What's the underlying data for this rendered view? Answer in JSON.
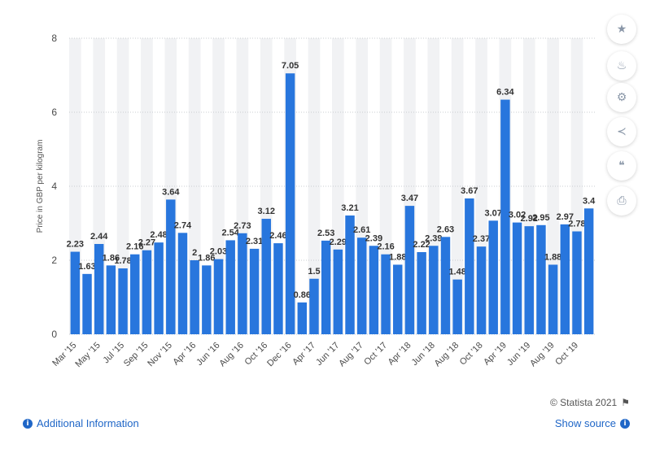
{
  "chart_data": {
    "type": "bar",
    "ylabel": "Price in GBP per kilogram",
    "ylim": [
      0,
      8
    ],
    "yticks": [
      0,
      2,
      4,
      6,
      8
    ],
    "grid": true,
    "bar_color": "#2876dd",
    "x_tick_labels": [
      "Mar '15",
      "May '15",
      "Jul '15",
      "Sep '15",
      "Nov '15",
      "Apr '16",
      "Jun '16",
      "Aug '16",
      "Oct '16",
      "Dec '16",
      "Apr '17",
      "Jun '17",
      "Aug '17",
      "Oct '17",
      "Apr '18",
      "Jun '18",
      "Aug '18",
      "Oct '18",
      "Apr '19",
      "Jun '19",
      "Aug '19",
      "Oct '19"
    ],
    "values": [
      2.23,
      1.63,
      2.44,
      1.86,
      1.78,
      2.16,
      2.27,
      2.48,
      3.64,
      2.74,
      2.0,
      1.86,
      2.03,
      2.54,
      2.73,
      2.31,
      3.12,
      2.46,
      7.05,
      0.86,
      1.5,
      2.53,
      2.29,
      3.21,
      2.61,
      2.39,
      2.16,
      1.88,
      3.47,
      2.22,
      2.39,
      2.63,
      1.48,
      3.67,
      2.37,
      3.07,
      6.34,
      3.02,
      2.92,
      2.95,
      1.88,
      2.97,
      2.78,
      3.4
    ],
    "value_labels": [
      "2.23",
      "1.63",
      "2.44",
      "1.86",
      "1.78",
      "2.16",
      "2.27",
      "2.48",
      "3.64",
      "2.74",
      "2",
      "1.86",
      "2.03",
      "2.54",
      "2.73",
      "2.31",
      "3.12",
      "2.46",
      "7.05",
      "0.86",
      "1.5",
      "2.53",
      "2.29",
      "3.21",
      "2.61",
      "2.39",
      "2.16",
      "1.88",
      "3.47",
      "2.22",
      "2.39",
      "2.63",
      "1.48",
      "3.67",
      "2.37",
      "3.07",
      "6.34",
      "3.02",
      "2.92",
      "2.95",
      "1.88",
      "2.97",
      "2.78",
      "3.4"
    ]
  },
  "sidebar": {
    "icons": [
      "star-icon",
      "bell-icon",
      "gear-icon",
      "share-icon",
      "quote-icon",
      "print-icon"
    ],
    "glyphs": [
      "★",
      "🔔",
      "⚙",
      "<",
      "❝",
      "⎙"
    ]
  },
  "footer": {
    "credit": "© Statista 2021",
    "additional_info": "Additional Information",
    "show_source": "Show source"
  }
}
